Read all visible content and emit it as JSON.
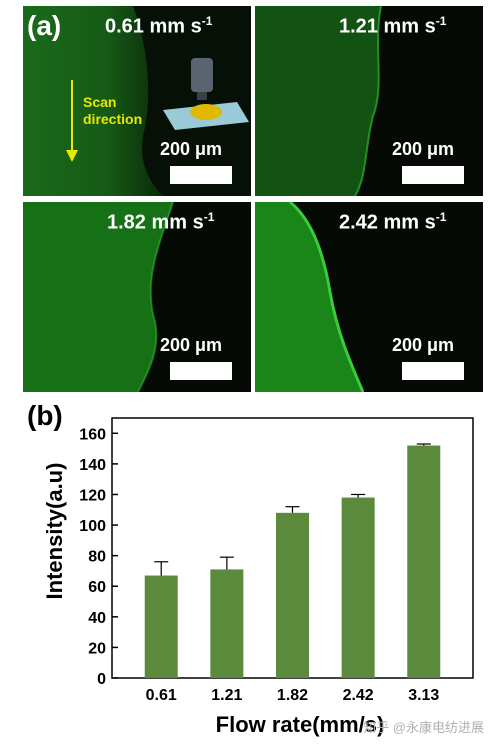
{
  "panel_a": {
    "letter": "(a)",
    "tiles": [
      {
        "speed": "0.61 mm s",
        "unit_sup": "-1",
        "scale": "200 μm"
      },
      {
        "speed": "1.21 mm s",
        "unit_sup": "-1",
        "scale": "200 μm"
      },
      {
        "speed": "1.82 mm s",
        "unit_sup": "-1",
        "scale": "200 μm"
      },
      {
        "speed": "2.42 mm s",
        "unit_sup": "-1",
        "scale": "200 μm"
      }
    ],
    "scan_line1": "Scan",
    "scan_line2": "direction",
    "colors": {
      "green_bright": "#1f7a1f",
      "green_dark": "#0a3a0a",
      "edge": "#2fb52f",
      "arrow": "#e8e800"
    }
  },
  "panel_b": {
    "letter": "(b)"
  },
  "chart_data": {
    "type": "bar",
    "categories": [
      "0.61",
      "1.21",
      "1.82",
      "2.42",
      "3.13"
    ],
    "values": [
      67,
      71,
      108,
      118,
      152
    ],
    "errors": [
      9,
      8,
      4,
      2,
      1
    ],
    "xlabel": "Flow rate(mm/s)",
    "ylabel": "Intensity(a.u)",
    "ylim": [
      0,
      170
    ],
    "yticks": [
      0,
      20,
      40,
      60,
      80,
      100,
      120,
      140,
      160
    ],
    "bar_color": "#5b8a3c",
    "grid": false
  },
  "watermark": "知乎 @永康电纺进展"
}
